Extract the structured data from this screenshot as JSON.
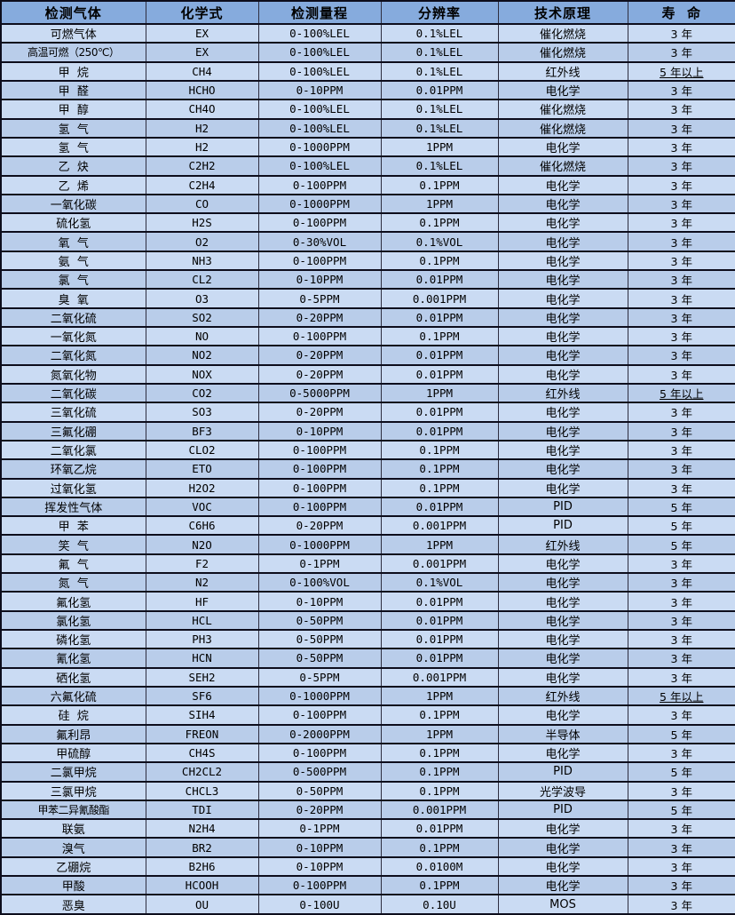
{
  "colors": {
    "header_bg": "#86abdd",
    "row_light": "#cadbf3",
    "row_dark": "#b9cdea",
    "border_dark": "#0d0d1c",
    "grid": "#2e2e40",
    "text": "#000000"
  },
  "table": {
    "columns": [
      {
        "key": "gas",
        "label": "检测气体"
      },
      {
        "key": "formula",
        "label": "化学式"
      },
      {
        "key": "range",
        "label": "检测量程"
      },
      {
        "key": "resolution",
        "label": "分辨率"
      },
      {
        "key": "principle",
        "label": "技术原理"
      },
      {
        "key": "life",
        "label": "寿  命"
      }
    ],
    "rows": [
      {
        "gas": "可燃气体",
        "formula": "EX",
        "range": "0-100%LEL",
        "resolution": "0.1%LEL",
        "principle": "催化燃烧",
        "life": "3 年"
      },
      {
        "gas": "高温可燃（250℃）",
        "formula": "EX",
        "range": "0-100%LEL",
        "resolution": "0.1%LEL",
        "principle": "催化燃烧",
        "life": "3 年"
      },
      {
        "gas": "甲  烷",
        "formula": "CH4",
        "range": "0-100%LEL",
        "resolution": "0.1%LEL",
        "principle": "红外线",
        "life": "5 年以上",
        "life_underline": true
      },
      {
        "gas": "甲  醛",
        "formula": "HCHO",
        "range": "0-10PPM",
        "resolution": "0.01PPM",
        "principle": "电化学",
        "life": "3 年"
      },
      {
        "gas": "甲  醇",
        "formula": "CH4O",
        "range": "0-100%LEL",
        "resolution": "0.1%LEL",
        "principle": "催化燃烧",
        "life": "3 年"
      },
      {
        "gas": "氢  气",
        "formula": "H2",
        "range": "0-100%LEL",
        "resolution": "0.1%LEL",
        "principle": "催化燃烧",
        "life": "3 年"
      },
      {
        "gas": "氢  气",
        "formula": "H2",
        "range": "0-1000PPM",
        "resolution": "1PPM",
        "principle": "电化学",
        "life": "3 年"
      },
      {
        "gas": "乙  炔",
        "formula": "C2H2",
        "range": "0-100%LEL",
        "resolution": "0.1%LEL",
        "principle": "催化燃烧",
        "life": "3 年"
      },
      {
        "gas": "乙  烯",
        "formula": "C2H4",
        "range": "0-100PPM",
        "resolution": "0.1PPM",
        "principle": "电化学",
        "life": "3 年"
      },
      {
        "gas": "一氧化碳",
        "formula": "CO",
        "range": "0-1000PPM",
        "resolution": "1PPM",
        "principle": "电化学",
        "life": "3 年"
      },
      {
        "gas": "硫化氢",
        "formula": "H2S",
        "range": "0-100PPM",
        "resolution": "0.1PPM",
        "principle": "电化学",
        "life": "3 年"
      },
      {
        "gas": "氧  气",
        "formula": "O2",
        "range": "0-30%VOL",
        "resolution": "0.1%VOL",
        "principle": "电化学",
        "life": "3 年"
      },
      {
        "gas": "氨  气",
        "formula": "NH3",
        "range": "0-100PPM",
        "resolution": "0.1PPM",
        "principle": "电化学",
        "life": "3 年"
      },
      {
        "gas": "氯  气",
        "formula": "CL2",
        "range": "0-10PPM",
        "resolution": "0.01PPM",
        "principle": "电化学",
        "life": "3 年"
      },
      {
        "gas": "臭  氧",
        "formula": "O3",
        "range": "0-5PPM",
        "resolution": "0.001PPM",
        "principle": "电化学",
        "life": "3 年"
      },
      {
        "gas": "二氧化硫",
        "formula": "SO2",
        "range": "0-20PPM",
        "resolution": "0.01PPM",
        "principle": "电化学",
        "life": "3 年"
      },
      {
        "gas": "一氧化氮",
        "formula": "NO",
        "range": "0-100PPM",
        "resolution": "0.1PPM",
        "principle": "电化学",
        "life": "3 年"
      },
      {
        "gas": "二氧化氮",
        "formula": "NO2",
        "range": "0-20PPM",
        "resolution": "0.01PPM",
        "principle": "电化学",
        "life": "3 年"
      },
      {
        "gas": "氮氧化物",
        "formula": "NOX",
        "range": "0-20PPM",
        "resolution": "0.01PPM",
        "principle": "电化学",
        "life": "3 年"
      },
      {
        "gas": "二氧化碳",
        "formula": "CO2",
        "range": "0-5000PPM",
        "resolution": "1PPM",
        "principle": "红外线",
        "life": "5 年以上",
        "life_underline": true
      },
      {
        "gas": "三氧化硫",
        "formula": "SO3",
        "range": "0-20PPM",
        "resolution": "0.01PPM",
        "principle": "电化学",
        "life": "3 年"
      },
      {
        "gas": "三氟化硼",
        "formula": "BF3",
        "range": "0-10PPM",
        "resolution": "0.01PPM",
        "principle": "电化学",
        "life": "3 年"
      },
      {
        "gas": "二氧化氯",
        "formula": "CLO2",
        "range": "0-100PPM",
        "resolution": "0.1PPM",
        "principle": "电化学",
        "life": "3 年"
      },
      {
        "gas": "环氧乙烷",
        "formula": "ETO",
        "range": "0-100PPM",
        "resolution": "0.1PPM",
        "principle": "电化学",
        "life": "3 年"
      },
      {
        "gas": "过氧化氢",
        "formula": "H2O2",
        "range": "0-100PPM",
        "resolution": "0.1PPM",
        "principle": "电化学",
        "life": "3 年"
      },
      {
        "gas": "挥发性气体",
        "formula": "VOC",
        "range": "0-100PPM",
        "resolution": "0.01PPM",
        "principle": "PID",
        "life": "5 年"
      },
      {
        "gas": "甲  苯",
        "formula": "C6H6",
        "range": "0-20PPM",
        "resolution": "0.001PPM",
        "principle": "PID",
        "life": "5 年"
      },
      {
        "gas": "笑  气",
        "formula": "N2O",
        "range": "0-1000PPM",
        "resolution": "1PPM",
        "principle": "红外线",
        "life": "5 年"
      },
      {
        "gas": "氟  气",
        "formula": "F2",
        "range": "0-1PPM",
        "resolution": "0.001PPM",
        "principle": "电化学",
        "life": "3 年"
      },
      {
        "gas": "氮  气",
        "formula": "N2",
        "range": "0-100%VOL",
        "resolution": "0.1%VOL",
        "principle": "电化学",
        "life": "3 年"
      },
      {
        "gas": "氟化氢",
        "formula": "HF",
        "range": "0-10PPM",
        "resolution": "0.01PPM",
        "principle": "电化学",
        "life": "3 年"
      },
      {
        "gas": "氯化氢",
        "formula": "HCL",
        "range": "0-50PPM",
        "resolution": "0.01PPM",
        "principle": "电化学",
        "life": "3 年"
      },
      {
        "gas": "磷化氢",
        "formula": "PH3",
        "range": "0-50PPM",
        "resolution": "0.01PPM",
        "principle": "电化学",
        "life": "3 年"
      },
      {
        "gas": "氰化氢",
        "formula": "HCN",
        "range": "0-50PPM",
        "resolution": "0.01PPM",
        "principle": "电化学",
        "life": "3 年"
      },
      {
        "gas": "硒化氢",
        "formula": "SEH2",
        "range": "0-5PPM",
        "resolution": "0.001PPM",
        "principle": "电化学",
        "life": "3 年"
      },
      {
        "gas": "六氟化硫",
        "formula": "SF6",
        "range": "0-1000PPM",
        "resolution": "1PPM",
        "principle": "红外线",
        "life": "5 年以上",
        "life_underline": true
      },
      {
        "gas": "硅  烷",
        "formula": "SIH4",
        "range": "0-100PPM",
        "resolution": "0.1PPM",
        "principle": "电化学",
        "life": "3 年"
      },
      {
        "gas": "氟利昂",
        "formula": "FREON",
        "range": "0-2000PPM",
        "resolution": "1PPM",
        "principle": "半导体",
        "life": "5 年"
      },
      {
        "gas": "甲硫醇",
        "formula": "CH4S",
        "range": "0-100PPM",
        "resolution": "0.1PPM",
        "principle": "电化学",
        "life": "3 年"
      },
      {
        "gas": "二氯甲烷",
        "formula": "CH2CL2",
        "range": "0-500PPM",
        "resolution": "0.1PPM",
        "principle": "PID",
        "life": "5 年"
      },
      {
        "gas": "三氯甲烷",
        "formula": "CHCL3",
        "range": "0-50PPM",
        "resolution": "0.1PPM",
        "principle": "光学波导",
        "life": "3 年"
      },
      {
        "gas": "甲苯二异氰酸酯",
        "formula": "TDI",
        "range": "0-20PPM",
        "resolution": "0.001PPM",
        "principle": "PID",
        "life": "5 年"
      },
      {
        "gas": "联氨",
        "formula": "N2H4",
        "range": "0-1PPM",
        "resolution": "0.01PPM",
        "principle": "电化学",
        "life": "3 年"
      },
      {
        "gas": "溴气",
        "formula": "BR2",
        "range": "0-10PPM",
        "resolution": "0.1PPM",
        "principle": "电化学",
        "life": "3 年"
      },
      {
        "gas": "乙硼烷",
        "formula": "B2H6",
        "range": "0-10PPM",
        "resolution": "0.0100M",
        "principle": "电化学",
        "life": "3 年"
      },
      {
        "gas": "甲酸",
        "formula": "HCOOH",
        "range": "0-100PPM",
        "resolution": "0.1PPM",
        "principle": "电化学",
        "life": "3 年"
      },
      {
        "gas": "恶臭",
        "formula": "OU",
        "range": "0-100U",
        "resolution": "0.10U",
        "principle": "MOS",
        "life": "3 年"
      }
    ]
  }
}
